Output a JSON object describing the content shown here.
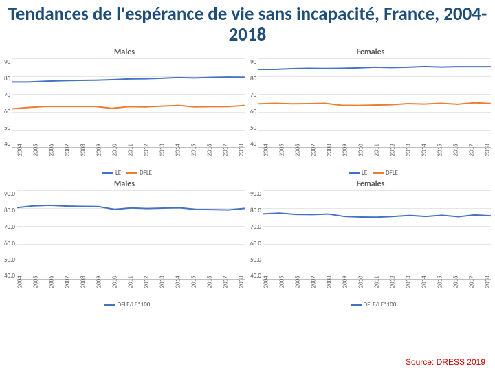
{
  "title": "Tendances de l'espérance de vie sans incapacité, France, 2004-2018",
  "source_label": "Source: DRESS 2019",
  "years": [
    2004,
    2005,
    2006,
    2007,
    2008,
    2009,
    2010,
    2011,
    2012,
    2013,
    2014,
    2015,
    2016,
    2017,
    2018
  ],
  "colors": {
    "le": "#4472c4",
    "dfle": "#ed7d31",
    "ratio": "#4472c4",
    "grid": "#e6e6e6",
    "axis": "#bfbfbf",
    "text": "#595959",
    "title": "#1f4e79",
    "background": "#ffffff"
  },
  "typography": {
    "title_fontsize": 27,
    "panel_title_fontsize": 12,
    "tick_fontsize": 9,
    "legend_fontsize": 9
  },
  "panels": [
    {
      "id": "males-top",
      "title": "Males",
      "ylim": [
        40,
        90
      ],
      "ytick_step": 10,
      "series": [
        {
          "name": "LE",
          "color_key": "le",
          "values": [
            76.7,
            76.7,
            77.1,
            77.4,
            77.6,
            77.7,
            78.0,
            78.4,
            78.5,
            78.8,
            79.2,
            79.0,
            79.3,
            79.5,
            79.4
          ],
          "line_width": 2
        },
        {
          "name": "DFLE",
          "color_key": "dfle",
          "values": [
            61.5,
            62.3,
            62.8,
            62.8,
            62.8,
            62.8,
            61.8,
            62.7,
            62.6,
            63.0,
            63.4,
            62.6,
            62.7,
            62.7,
            63.4
          ],
          "line_width": 2
        }
      ],
      "legend": [
        {
          "label": "LE",
          "color_key": "le"
        },
        {
          "label": "DFLE",
          "color_key": "dfle"
        }
      ]
    },
    {
      "id": "females-top",
      "title": "Females",
      "ylim": [
        40,
        90
      ],
      "ytick_step": 10,
      "series": [
        {
          "name": "LE",
          "color_key": "le",
          "values": [
            83.8,
            83.8,
            84.2,
            84.4,
            84.3,
            84.4,
            84.6,
            85.0,
            84.8,
            85.0,
            85.4,
            85.1,
            85.3,
            85.3,
            85.3
          ],
          "line_width": 2
        },
        {
          "name": "DFLE",
          "color_key": "dfle",
          "values": [
            64.3,
            64.6,
            64.3,
            64.4,
            64.6,
            63.5,
            63.4,
            63.6,
            63.8,
            64.4,
            64.2,
            64.6,
            64.1,
            64.9,
            64.5
          ],
          "line_width": 2
        }
      ],
      "legend": [
        {
          "label": "LE",
          "color_key": "le"
        },
        {
          "label": "DFLE",
          "color_key": "dfle"
        }
      ]
    },
    {
      "id": "males-bottom",
      "title": "Males",
      "ylim": [
        40,
        90
      ],
      "ytick_step": 10,
      "decimals": 1,
      "series": [
        {
          "name": "DFLE/LE*100",
          "color_key": "ratio",
          "values": [
            80.2,
            81.2,
            81.5,
            81.1,
            80.9,
            80.8,
            79.2,
            80.0,
            79.7,
            79.9,
            80.1,
            79.2,
            79.1,
            78.9,
            79.8
          ],
          "line_width": 2
        }
      ],
      "legend": [
        {
          "label": "DFLE/LE*100",
          "color_key": "ratio"
        }
      ]
    },
    {
      "id": "females-bottom",
      "title": "Females",
      "ylim": [
        40,
        90
      ],
      "ytick_step": 10,
      "decimals": 1,
      "series": [
        {
          "name": "DFLE/LE*100",
          "color_key": "ratio",
          "values": [
            76.7,
            77.1,
            76.4,
            76.3,
            76.6,
            75.2,
            74.9,
            74.8,
            75.2,
            75.8,
            75.2,
            75.9,
            75.1,
            76.1,
            75.6
          ],
          "line_width": 2
        }
      ],
      "legend": [
        {
          "label": "DFLE/LE*100",
          "color_key": "ratio"
        }
      ]
    }
  ]
}
